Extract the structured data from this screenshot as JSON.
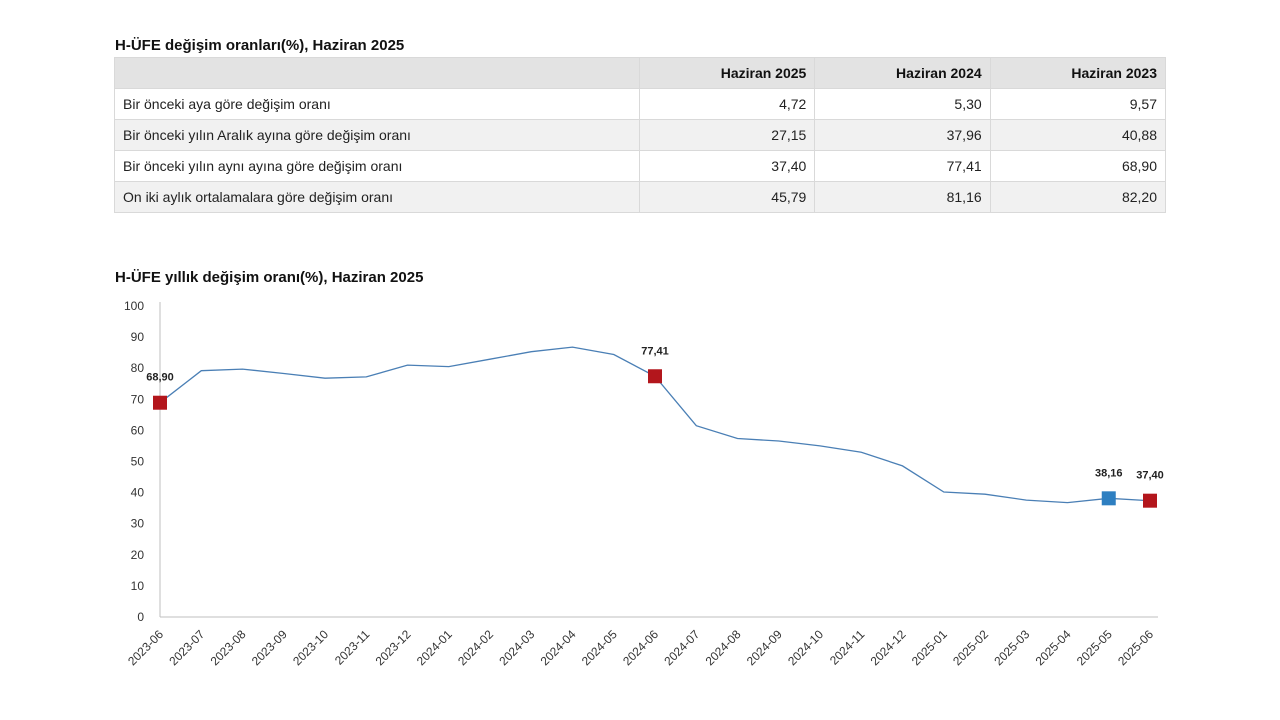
{
  "table": {
    "title": "H-ÜFE değişim oranları(%), Haziran 2025",
    "headers": [
      "",
      "Haziran 2025",
      "Haziran 2024",
      "Haziran 2023"
    ],
    "rows": [
      {
        "label": "Bir önceki aya göre değişim oranı",
        "values": [
          "4,72",
          "5,30",
          "9,57"
        ]
      },
      {
        "label": "Bir önceki yılın Aralık ayına göre değişim oranı",
        "values": [
          "27,15",
          "37,96",
          "40,88"
        ]
      },
      {
        "label": "Bir önceki yılın aynı ayına göre değişim oranı",
        "values": [
          "37,40",
          "77,41",
          "68,90"
        ]
      },
      {
        "label": "On iki aylık ortalamalara göre değişim oranı",
        "values": [
          "45,79",
          "81,16",
          "82,20"
        ]
      }
    ]
  },
  "chart_data": {
    "type": "line",
    "title": "H-ÜFE yıllık değişim oranı(%), Haziran 2025",
    "xlabel": "",
    "ylabel": "",
    "ylim": [
      0,
      100
    ],
    "yticks": [
      0,
      10,
      20,
      30,
      40,
      50,
      60,
      70,
      80,
      90,
      100
    ],
    "grid": false,
    "line_color": "#4a7fb5",
    "x": [
      "2023-06",
      "2023-07",
      "2023-08",
      "2023-09",
      "2023-10",
      "2023-11",
      "2023-12",
      "2024-01",
      "2024-02",
      "2024-03",
      "2024-04",
      "2024-05",
      "2024-06",
      "2024-07",
      "2024-08",
      "2024-09",
      "2024-10",
      "2024-11",
      "2024-12",
      "2025-01",
      "2025-02",
      "2025-03",
      "2025-04",
      "2025-05",
      "2025-06"
    ],
    "values": [
      68.9,
      79.2,
      79.7,
      78.3,
      76.8,
      77.2,
      81.0,
      80.5,
      82.9,
      85.3,
      86.8,
      84.4,
      77.41,
      61.5,
      57.4,
      56.6,
      55.0,
      53.0,
      48.6,
      40.2,
      39.5,
      37.6,
      36.8,
      38.16,
      37.4
    ],
    "markers": [
      {
        "x": "2023-06",
        "value": 68.9,
        "label": "68,90",
        "color": "#b3161c"
      },
      {
        "x": "2024-06",
        "value": 77.41,
        "label": "77,41",
        "color": "#b3161c"
      },
      {
        "x": "2025-05",
        "value": 38.16,
        "label": "38,16",
        "color": "#2e7fc1"
      },
      {
        "x": "2025-06",
        "value": 37.4,
        "label": "37,40",
        "color": "#b3161c"
      }
    ]
  }
}
